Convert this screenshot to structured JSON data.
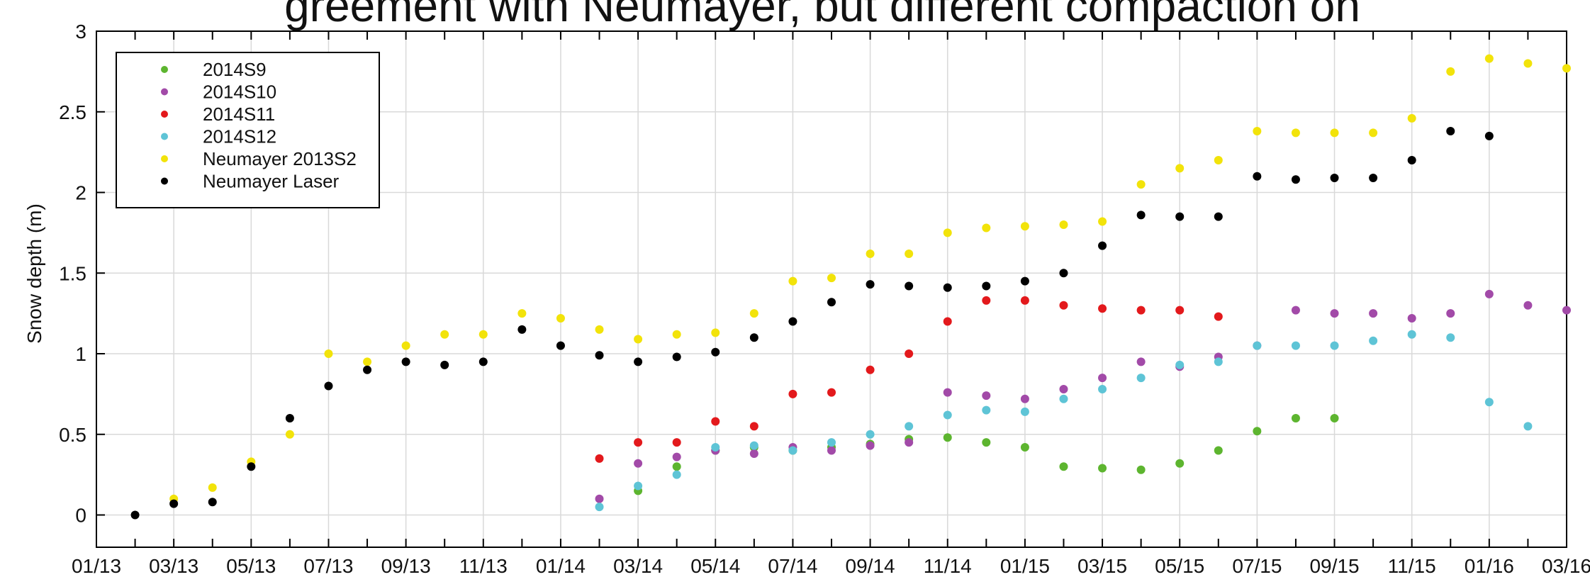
{
  "chart_data": {
    "type": "scatter",
    "title": "greement with Neumayer, but different compaction on",
    "ylabel": "Snow depth (m)",
    "categories": [
      "01/13",
      null,
      "03/13",
      null,
      "05/13",
      null,
      "07/13",
      null,
      "09/13",
      null,
      "11/13",
      null,
      "01/14",
      null,
      "03/14",
      null,
      "05/14",
      null,
      "07/14",
      null,
      "09/14",
      null,
      "11/14",
      null,
      "01/15",
      null,
      "03/15",
      null,
      "05/15",
      null,
      "07/15",
      null,
      "09/15",
      null,
      "11/15",
      null,
      "01/16",
      null,
      "03/16"
    ],
    "ylim": [
      -0.2,
      3
    ],
    "yticks": [
      0,
      0.5,
      1,
      1.5,
      2,
      2.5,
      3
    ],
    "grid": true,
    "legend": "upper left",
    "series": [
      {
        "name": "2014S9",
        "color": "#5db52f",
        "values": [
          null,
          null,
          null,
          null,
          null,
          null,
          null,
          null,
          null,
          null,
          null,
          null,
          null,
          null,
          0.15,
          0.3,
          0.4,
          0.42,
          0.4,
          0.42,
          0.44,
          0.47,
          0.48,
          0.45,
          0.42,
          0.3,
          0.29,
          0.28,
          0.32,
          0.4,
          0.52,
          0.6,
          0.6,
          null,
          null,
          null,
          null,
          null,
          null
        ]
      },
      {
        "name": "2014S10",
        "color": "#a24aa8",
        "values": [
          null,
          null,
          null,
          null,
          null,
          null,
          null,
          null,
          null,
          null,
          null,
          null,
          null,
          0.1,
          0.32,
          0.36,
          0.4,
          0.38,
          0.42,
          0.4,
          0.43,
          0.45,
          0.76,
          0.74,
          0.72,
          0.78,
          0.85,
          0.95,
          0.92,
          0.98,
          1.05,
          1.27,
          1.25,
          1.25,
          1.22,
          1.25,
          1.37,
          1.3,
          1.27
        ]
      },
      {
        "name": "2014S11",
        "color": "#e3191c",
        "values": [
          null,
          null,
          null,
          null,
          null,
          null,
          null,
          null,
          null,
          null,
          null,
          null,
          null,
          0.35,
          0.45,
          0.45,
          0.58,
          0.55,
          0.75,
          0.76,
          0.9,
          1.0,
          1.2,
          1.33,
          1.33,
          1.3,
          1.28,
          1.27,
          1.27,
          1.23,
          null,
          null,
          null,
          null,
          null,
          null,
          null,
          null,
          null
        ]
      },
      {
        "name": "2014S12",
        "color": "#5ec4d6",
        "values": [
          null,
          null,
          null,
          null,
          null,
          null,
          null,
          null,
          null,
          null,
          null,
          null,
          null,
          0.05,
          0.18,
          0.25,
          0.42,
          0.43,
          0.4,
          0.45,
          0.5,
          0.55,
          0.62,
          0.65,
          0.64,
          0.72,
          0.78,
          0.85,
          0.93,
          0.95,
          1.05,
          1.05,
          1.05,
          1.08,
          1.12,
          1.1,
          0.7,
          0.55,
          null
        ]
      },
      {
        "name": "Neumayer 2013S2",
        "color": "#f2e30a",
        "values": [
          null,
          null,
          0.1,
          0.17,
          0.33,
          0.5,
          1.0,
          0.95,
          1.05,
          1.12,
          1.12,
          1.25,
          1.22,
          1.15,
          1.09,
          1.12,
          1.13,
          1.25,
          1.45,
          1.47,
          1.62,
          1.62,
          1.75,
          1.78,
          1.79,
          1.8,
          1.82,
          2.05,
          2.15,
          2.2,
          2.38,
          2.37,
          2.37,
          2.37,
          2.46,
          2.75,
          2.83,
          2.8,
          2.77
        ]
      },
      {
        "name": "Neumayer Laser",
        "color": "#000000",
        "values": [
          null,
          0.0,
          0.07,
          0.08,
          0.3,
          0.6,
          0.8,
          0.9,
          0.95,
          0.93,
          0.95,
          1.15,
          1.05,
          0.99,
          0.95,
          0.98,
          1.01,
          1.1,
          1.2,
          1.32,
          1.43,
          1.42,
          1.41,
          1.42,
          1.45,
          1.5,
          1.67,
          1.86,
          1.85,
          1.85,
          2.1,
          2.08,
          2.09,
          2.09,
          2.2,
          2.38,
          2.35,
          null,
          null
        ]
      }
    ]
  }
}
